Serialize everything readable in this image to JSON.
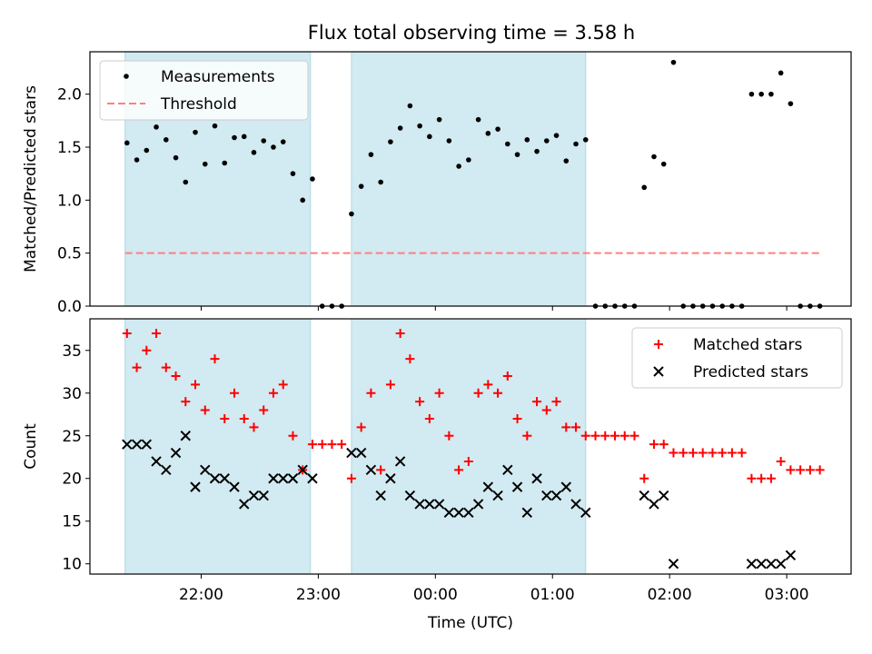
{
  "figure": {
    "title": "Flux total observing time = 3.58 h"
  },
  "colors": {
    "shade": "#add8e6",
    "threshold": "#ff7f7f",
    "matched": "#ff0000",
    "predicted": "#000000",
    "measurement": "#000000"
  },
  "chart_data": [
    {
      "type": "scatter",
      "ylabel": "Matched/Predicted stars",
      "xlim": [
        "21:03",
        "03:33"
      ],
      "ylim": [
        0,
        2.4
      ],
      "yticks": [
        0.0,
        0.5,
        1.0,
        1.5,
        2.0
      ],
      "ytick_labels": [
        "0.0",
        "0.5",
        "1.0",
        "1.5",
        "2.0"
      ],
      "legend_position": "top-left",
      "shaded_intervals": [
        [
          "21:21",
          "22:56"
        ],
        [
          "23:17",
          "01:17"
        ]
      ],
      "threshold": {
        "name": "Threshold",
        "value": 0.5,
        "x_range": [
          "21:21",
          "03:17"
        ]
      },
      "series": [
        {
          "name": "Measurements",
          "marker": "dot",
          "points": [
            [
              "21:22",
              1.54
            ],
            [
              "21:27",
              1.38
            ],
            [
              "21:32",
              1.47
            ],
            [
              "21:37",
              1.69
            ],
            [
              "21:42",
              1.57
            ],
            [
              "21:47",
              1.4
            ],
            [
              "21:52",
              1.17
            ],
            [
              "21:57",
              1.64
            ],
            [
              "22:02",
              1.34
            ],
            [
              "22:07",
              1.7
            ],
            [
              "22:12",
              1.35
            ],
            [
              "22:17",
              1.59
            ],
            [
              "22:22",
              1.6
            ],
            [
              "22:27",
              1.45
            ],
            [
              "22:32",
              1.56
            ],
            [
              "22:37",
              1.5
            ],
            [
              "22:42",
              1.55
            ],
            [
              "22:47",
              1.25
            ],
            [
              "22:52",
              1.0
            ],
            [
              "22:57",
              1.2
            ],
            [
              "23:02",
              0
            ],
            [
              "23:07",
              0
            ],
            [
              "23:12",
              0
            ],
            [
              "23:17",
              0.87
            ],
            [
              "23:22",
              1.13
            ],
            [
              "23:27",
              1.43
            ],
            [
              "23:32",
              1.17
            ],
            [
              "23:37",
              1.55
            ],
            [
              "23:42",
              1.68
            ],
            [
              "23:47",
              1.89
            ],
            [
              "23:52",
              1.7
            ],
            [
              "23:57",
              1.6
            ],
            [
              "00:02",
              1.76
            ],
            [
              "00:07",
              1.56
            ],
            [
              "00:12",
              1.32
            ],
            [
              "00:17",
              1.38
            ],
            [
              "00:22",
              1.76
            ],
            [
              "00:27",
              1.63
            ],
            [
              "00:32",
              1.67
            ],
            [
              "00:37",
              1.53
            ],
            [
              "00:42",
              1.43
            ],
            [
              "00:47",
              1.57
            ],
            [
              "00:52",
              1.46
            ],
            [
              "00:57",
              1.56
            ],
            [
              "01:02",
              1.61
            ],
            [
              "01:07",
              1.37
            ],
            [
              "01:12",
              1.53
            ],
            [
              "01:17",
              1.57
            ],
            [
              "01:22",
              0
            ],
            [
              "01:27",
              0
            ],
            [
              "01:32",
              0
            ],
            [
              "01:37",
              0
            ],
            [
              "01:42",
              0
            ],
            [
              "01:47",
              1.12
            ],
            [
              "01:52",
              1.41
            ],
            [
              "01:57",
              1.34
            ],
            [
              "02:02",
              2.3
            ],
            [
              "02:07",
              0
            ],
            [
              "02:12",
              0
            ],
            [
              "02:17",
              0
            ],
            [
              "02:22",
              0
            ],
            [
              "02:27",
              0
            ],
            [
              "02:32",
              0
            ],
            [
              "02:37",
              0
            ],
            [
              "02:42",
              2.0
            ],
            [
              "02:47",
              2.0
            ],
            [
              "02:52",
              2.0
            ],
            [
              "02:57",
              2.2
            ],
            [
              "03:02",
              1.91
            ],
            [
              "03:07",
              0
            ],
            [
              "03:12",
              0
            ],
            [
              "03:17",
              0
            ]
          ]
        }
      ]
    },
    {
      "type": "scatter",
      "xlabel": "Time (UTC)",
      "ylabel": "Count",
      "xlim": [
        "21:03",
        "03:33"
      ],
      "ylim": [
        8.8,
        38.7
      ],
      "yticks": [
        10,
        15,
        20,
        25,
        30,
        35
      ],
      "ytick_labels": [
        "10",
        "15",
        "20",
        "25",
        "30",
        "35"
      ],
      "xticks": [
        "22:00",
        "23:00",
        "00:00",
        "01:00",
        "02:00",
        "03:00"
      ],
      "legend_position": "top-right",
      "shaded_intervals": [
        [
          "21:21",
          "22:56"
        ],
        [
          "23:17",
          "01:17"
        ]
      ],
      "series": [
        {
          "name": "Matched stars",
          "marker": "plus",
          "points": [
            [
              "21:22",
              37
            ],
            [
              "21:27",
              33
            ],
            [
              "21:32",
              35
            ],
            [
              "21:37",
              37
            ],
            [
              "21:42",
              33
            ],
            [
              "21:47",
              32
            ],
            [
              "21:52",
              29
            ],
            [
              "21:57",
              31
            ],
            [
              "22:02",
              28
            ],
            [
              "22:07",
              34
            ],
            [
              "22:12",
              27
            ],
            [
              "22:17",
              30
            ],
            [
              "22:22",
              27
            ],
            [
              "22:27",
              26
            ],
            [
              "22:32",
              28
            ],
            [
              "22:37",
              30
            ],
            [
              "22:42",
              31
            ],
            [
              "22:47",
              25
            ],
            [
              "22:52",
              21
            ],
            [
              "22:57",
              24
            ],
            [
              "23:02",
              24
            ],
            [
              "23:07",
              24
            ],
            [
              "23:12",
              24
            ],
            [
              "23:17",
              20
            ],
            [
              "23:22",
              26
            ],
            [
              "23:27",
              30
            ],
            [
              "23:32",
              21
            ],
            [
              "23:37",
              31
            ],
            [
              "23:42",
              37
            ],
            [
              "23:47",
              34
            ],
            [
              "23:52",
              29
            ],
            [
              "23:57",
              27
            ],
            [
              "00:02",
              30
            ],
            [
              "00:07",
              25
            ],
            [
              "00:12",
              21
            ],
            [
              "00:17",
              22
            ],
            [
              "00:22",
              30
            ],
            [
              "00:27",
              31
            ],
            [
              "00:32",
              30
            ],
            [
              "00:37",
              32
            ],
            [
              "00:42",
              27
            ],
            [
              "00:47",
              25
            ],
            [
              "00:52",
              29
            ],
            [
              "00:57",
              28
            ],
            [
              "01:02",
              29
            ],
            [
              "01:07",
              26
            ],
            [
              "01:12",
              26
            ],
            [
              "01:17",
              25
            ],
            [
              "01:22",
              25
            ],
            [
              "01:27",
              25
            ],
            [
              "01:32",
              25
            ],
            [
              "01:37",
              25
            ],
            [
              "01:42",
              25
            ],
            [
              "01:47",
              20
            ],
            [
              "01:52",
              24
            ],
            [
              "01:57",
              24
            ],
            [
              "02:02",
              23
            ],
            [
              "02:07",
              23
            ],
            [
              "02:12",
              23
            ],
            [
              "02:17",
              23
            ],
            [
              "02:22",
              23
            ],
            [
              "02:27",
              23
            ],
            [
              "02:32",
              23
            ],
            [
              "02:37",
              23
            ],
            [
              "02:42",
              20
            ],
            [
              "02:47",
              20
            ],
            [
              "02:52",
              20
            ],
            [
              "02:57",
              22
            ],
            [
              "03:02",
              21
            ],
            [
              "03:07",
              21
            ],
            [
              "03:12",
              21
            ],
            [
              "03:17",
              21
            ]
          ]
        },
        {
          "name": "Predicted stars",
          "marker": "x",
          "points": [
            [
              "21:22",
              24
            ],
            [
              "21:27",
              24
            ],
            [
              "21:32",
              24
            ],
            [
              "21:37",
              22
            ],
            [
              "21:42",
              21
            ],
            [
              "21:47",
              23
            ],
            [
              "21:52",
              25
            ],
            [
              "21:57",
              19
            ],
            [
              "22:02",
              21
            ],
            [
              "22:07",
              20
            ],
            [
              "22:12",
              20
            ],
            [
              "22:17",
              19
            ],
            [
              "22:22",
              17
            ],
            [
              "22:27",
              18
            ],
            [
              "22:32",
              18
            ],
            [
              "22:37",
              20
            ],
            [
              "22:42",
              20
            ],
            [
              "22:47",
              20
            ],
            [
              "22:52",
              21
            ],
            [
              "22:57",
              20
            ],
            [
              "23:17",
              23
            ],
            [
              "23:22",
              23
            ],
            [
              "23:27",
              21
            ],
            [
              "23:32",
              18
            ],
            [
              "23:37",
              20
            ],
            [
              "23:42",
              22
            ],
            [
              "23:47",
              18
            ],
            [
              "23:52",
              17
            ],
            [
              "23:57",
              17
            ],
            [
              "00:02",
              17
            ],
            [
              "00:07",
              16
            ],
            [
              "00:12",
              16
            ],
            [
              "00:17",
              16
            ],
            [
              "00:22",
              17
            ],
            [
              "00:27",
              19
            ],
            [
              "00:32",
              18
            ],
            [
              "00:37",
              21
            ],
            [
              "00:42",
              19
            ],
            [
              "00:47",
              16
            ],
            [
              "00:52",
              20
            ],
            [
              "00:57",
              18
            ],
            [
              "01:02",
              18
            ],
            [
              "01:07",
              19
            ],
            [
              "01:12",
              17
            ],
            [
              "01:17",
              16
            ],
            [
              "01:47",
              18
            ],
            [
              "01:52",
              17
            ],
            [
              "01:57",
              18
            ],
            [
              "02:02",
              10
            ],
            [
              "02:42",
              10
            ],
            [
              "02:47",
              10
            ],
            [
              "02:52",
              10
            ],
            [
              "02:57",
              10
            ],
            [
              "03:02",
              11
            ]
          ]
        }
      ]
    }
  ]
}
